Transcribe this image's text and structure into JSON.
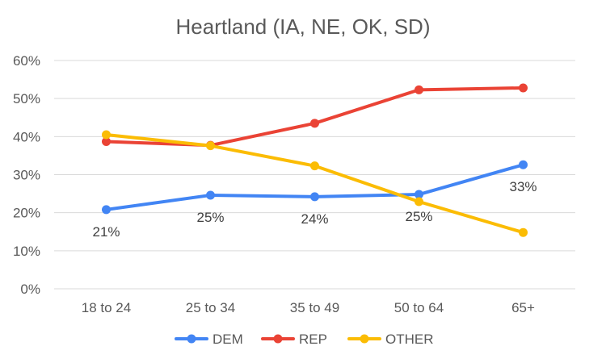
{
  "chart_data": {
    "type": "line",
    "title": "Heartland (IA, NE, OK, SD)",
    "xlabel": "",
    "ylabel": "",
    "categories": [
      "18 to 24",
      "25 to 34",
      "35 to 49",
      "50 to 64",
      "65+"
    ],
    "ylim": [
      0,
      60
    ],
    "yticks": [
      0,
      10,
      20,
      30,
      40,
      50,
      60
    ],
    "ytick_labels": [
      "0%",
      "10%",
      "20%",
      "30%",
      "40%",
      "50%",
      "60%"
    ],
    "grid": true,
    "legend_position": "bottom",
    "series": [
      {
        "name": "DEM",
        "color": "#4285f4",
        "values": [
          20.8,
          24.6,
          24.2,
          24.8,
          32.6
        ],
        "data_labels": [
          "21%",
          "25%",
          "24%",
          "25%",
          "33%"
        ]
      },
      {
        "name": "REP",
        "color": "#ea4335",
        "values": [
          38.7,
          37.7,
          43.5,
          52.3,
          52.8
        ]
      },
      {
        "name": "OTHER",
        "color": "#fbbc04",
        "values": [
          40.5,
          37.6,
          32.3,
          22.9,
          14.8
        ]
      }
    ]
  }
}
